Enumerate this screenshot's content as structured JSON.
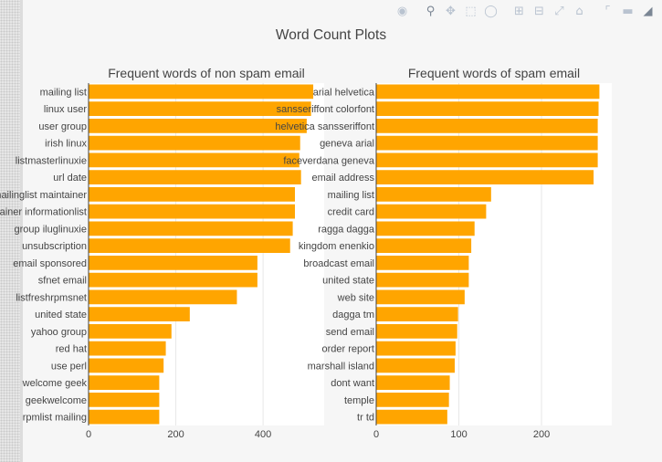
{
  "modebar": {
    "icons": [
      "camera-icon",
      "zoom-icon",
      "pan-icon",
      "box-select-icon",
      "lasso-icon",
      "zoom-in-icon",
      "zoom-out-icon",
      "autoscale-icon",
      "reset-axes-icon",
      "spike-lines-icon",
      "compare-hover-icon",
      "closest-hover-icon"
    ]
  },
  "colors": {
    "bar": "#FFA500",
    "axis_text": "#444444",
    "grid": "#e8e8e8",
    "panel_bg": "#ffffff",
    "page_bg": "#f6f6f6"
  },
  "chart_title": "Word Count Plots",
  "chart_data": [
    {
      "type": "bar",
      "orientation": "horizontal",
      "title": "Frequent words of non spam email",
      "categories": [
        "mailing list",
        "linux user",
        "user group",
        "irish linux",
        "listmasterlinuxie",
        "url date",
        "mailinglist maintainer",
        "maintainer informationlist",
        "group iluglinuxie",
        "unsubscription",
        "email sponsored",
        "sfnet email",
        "listfreshrpmsnet",
        "united state",
        "yahoo group",
        "red hat",
        "use perl",
        "welcome geek",
        "geekwelcome",
        "rpmlist mailing"
      ],
      "values": [
        515,
        510,
        500,
        485,
        483,
        487,
        473,
        473,
        468,
        462,
        387,
        387,
        340,
        232,
        190,
        177,
        172,
        162,
        162,
        162
      ],
      "xlim": [
        0,
        540
      ],
      "xticks": [
        0,
        200,
        400
      ],
      "grid": true,
      "legend": "none"
    },
    {
      "type": "bar",
      "orientation": "horizontal",
      "title": "Frequent words of spam email",
      "categories": [
        "arial helvetica",
        "sansseriffont colorfont",
        "helvetica sansseriffont",
        "geneva arial",
        "faceverdana geneva",
        "email address",
        "mailing list",
        "credit card",
        "ragga dagga",
        "kingdom enenkio",
        "broadcast email",
        "united state",
        "web site",
        "dagga tm",
        "send email",
        "order report",
        "marshall island",
        "dont want",
        "temple",
        "tr td"
      ],
      "values": [
        270,
        269,
        268,
        268,
        268,
        263,
        139,
        133,
        119,
        115,
        112,
        112,
        107,
        99,
        98,
        96,
        95,
        89,
        88,
        86
      ],
      "xlim": [
        0,
        285
      ],
      "xticks": [
        0,
        100,
        200
      ],
      "grid": true,
      "legend": "none"
    }
  ]
}
